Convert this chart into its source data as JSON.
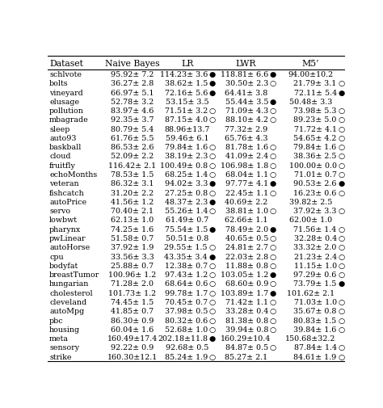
{
  "columns": [
    "Dataset",
    "Naive Bayes",
    "LR",
    "LWR",
    "M5’"
  ],
  "rows": [
    [
      "schlvote",
      "95.92± 7.2",
      "114.23± 3.6",
      "●",
      "118.81± 6.6",
      "●",
      "94.00±10.2",
      ""
    ],
    [
      "bolts",
      "36.27± 2.8",
      "38.62± 1.5",
      "●",
      "30.50± 2.3",
      "○",
      "21.79± 3.1",
      "○"
    ],
    [
      "vineyard",
      "66.97± 5.1",
      "72.16± 5.6",
      "●",
      "64.41± 3.8",
      "",
      "72.11± 5.4",
      "●"
    ],
    [
      "elusage",
      "52.78± 3.2",
      "53.15± 3.5",
      "",
      "55.44± 3.5",
      "●",
      "50.48± 3.3",
      ""
    ],
    [
      "pollution",
      "83.97± 4.6",
      "71.51± 3.2",
      "○",
      "71.09± 4.3",
      "○",
      "73.98± 5.3",
      "○"
    ],
    [
      "mbagrade",
      "92.35± 3.7",
      "87.15± 4.0",
      "○",
      "88.10± 4.2",
      "○",
      "89.23± 5.0",
      "○"
    ],
    [
      "sleep",
      "80.79± 5.4",
      "88.96±13.7",
      "",
      "77.32± 2.9",
      "",
      "71.72± 4.1",
      "○"
    ],
    [
      "auto93",
      "61.76± 5.5",
      "59.46± 6.1",
      "",
      "65.76± 4.3",
      "",
      "54.65± 4.2",
      "○"
    ],
    [
      "baskball",
      "86.53± 2.6",
      "79.84± 1.6",
      "○",
      "81.78± 1.6",
      "○",
      "79.84± 1.6",
      "○"
    ],
    [
      "cloud",
      "52.09± 2.2",
      "38.19± 2.3",
      "○",
      "41.09± 2.4",
      "○",
      "38.36± 2.5",
      "○"
    ],
    [
      "fruitfly",
      "116.42± 2.1",
      "100.49± 0.8",
      "○",
      "106.98± 1.8",
      "○",
      "100.00± 0.0",
      "○"
    ],
    [
      "echoMonths",
      "78.53± 1.5",
      "68.25± 1.4",
      "○",
      "68.04± 1.1",
      "○",
      "71.01± 0.7",
      "○"
    ],
    [
      "veteran",
      "86.32± 3.1",
      "94.02± 3.3",
      "●",
      "97.77± 4.1",
      "●",
      "90.53± 2.6",
      "●"
    ],
    [
      "fishcatch",
      "31.20± 2.2",
      "27.25± 0.8",
      "○",
      "22.45± 1.1",
      "○",
      "16.23± 0.6",
      "○"
    ],
    [
      "autoPrice",
      "41.56± 1.2",
      "48.37± 2.3",
      "●",
      "40.69± 2.2",
      "",
      "39.82± 2.5",
      ""
    ],
    [
      "servo",
      "70.40± 2.1",
      "55.26± 1.4",
      "○",
      "38.81± 1.0",
      "○",
      "37.92± 3.3",
      "○"
    ],
    [
      "lowbwt",
      "62.13± 1.0",
      "61.49± 0.7",
      "",
      "62.66± 1.1",
      "",
      "62.00± 1.0",
      ""
    ],
    [
      "pharynx",
      "74.25± 1.6",
      "75.54± 1.5",
      "●",
      "78.49± 2.0",
      "●",
      "71.56± 1.4",
      "○"
    ],
    [
      "pwLinear",
      "51.58± 0.7",
      "50.51± 0.8",
      "",
      "40.65± 0.5",
      "○",
      "32.28± 0.4",
      "○"
    ],
    [
      "autoHorse",
      "37.92± 1.9",
      "29.55± 1.5",
      "○",
      "24.81± 2.7",
      "○",
      "33.32± 2.0",
      "○"
    ],
    [
      "cpu",
      "33.56± 3.3",
      "43.35± 3.4",
      "●",
      "22.03± 2.8",
      "○",
      "21.23± 2.4",
      "○"
    ],
    [
      "bodyfat",
      "25.88± 0.7",
      "12.38± 0.7",
      "○",
      "11.88± 0.8",
      "○",
      "11.15± 1.0",
      "○"
    ],
    [
      "breastTumor",
      "100.96± 1.2",
      "97.43± 1.2",
      "○",
      "103.05± 1.2",
      "●",
      "97.29± 0.6",
      "○"
    ],
    [
      "hungarian",
      "71.28± 2.0",
      "68.64± 0.6",
      "○",
      "68.60± 0.9",
      "○",
      "73.79± 1.5",
      "●"
    ],
    [
      "cholesterol",
      "101.73± 1.2",
      "99.78± 1.7",
      "○",
      "103.89± 1.7",
      "●",
      "101.62± 2.1",
      ""
    ],
    [
      "cleveland",
      "74.45± 1.5",
      "70.45± 0.7",
      "○",
      "71.42± 1.1",
      "○",
      "71.03± 1.0",
      "○"
    ],
    [
      "autoMpg",
      "41.85± 0.7",
      "37.98± 0.5",
      "○",
      "33.28± 0.4",
      "○",
      "35.67± 0.8",
      "○"
    ],
    [
      "pbc",
      "86.30± 0.9",
      "80.32± 0.6",
      "○",
      "81.38± 0.8",
      "○",
      "80.83± 1.5",
      "○"
    ],
    [
      "housing",
      "60.04± 1.6",
      "52.68± 1.0",
      "○",
      "39.94± 0.8",
      "○",
      "39.84± 1.6",
      "○"
    ],
    [
      "meta",
      "160.49±17.4",
      "202.18±11.8",
      "●",
      "160.29±10.4",
      "",
      "150.68±32.2",
      ""
    ],
    [
      "sensory",
      "92.22± 0.9",
      "92.68± 0.5",
      "",
      "84.87± 0.5",
      "○",
      "87.84± 1.4",
      "○"
    ],
    [
      "strike",
      "160.30±12.1",
      "85.24± 1.9",
      "○",
      "85.27± 2.1",
      "",
      "84.61± 1.9",
      "○"
    ]
  ],
  "font_size": 6.8,
  "header_font_size": 7.8,
  "text_color": "#000000",
  "figsize": [
    4.74,
    5.06
  ],
  "dpi": 100
}
